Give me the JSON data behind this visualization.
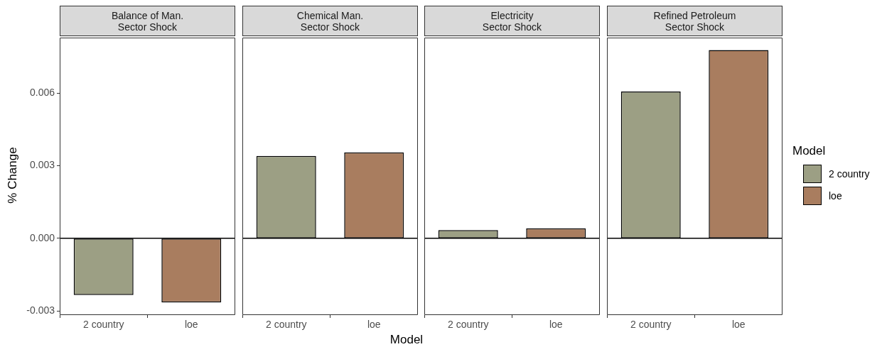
{
  "chart_data": [
    {
      "type": "bar",
      "title": "Balance of Man.\nSector Shock",
      "ylabel": "% Change",
      "legend_title": "Model",
      "legend": "right",
      "categories": [
        "2 country",
        "loe"
      ],
      "series": [
        {
          "name": "2 country",
          "color": "#9c9f84",
          "values": [
            -0.00234,
            null
          ]
        },
        {
          "name": "loe",
          "color": "#a97d5f",
          "values": [
            null,
            -0.00265
          ]
        }
      ],
      "ylim": [
        -0.00317,
        0.00829
      ],
      "yticks": [
        {
          "value": -0.003,
          "label": "-0.003"
        },
        {
          "value": 0,
          "label": "0.000"
        },
        {
          "value": 0.003,
          "label": "0.003"
        },
        {
          "value": 0.006,
          "label": "0.006"
        }
      ],
      "ref_lines": [
        {
          "axis": "y",
          "value": 0
        }
      ]
    },
    {
      "type": "bar",
      "title": "Chemical Man.\nSector Shock",
      "xlabel": "Model",
      "categories": [
        "2 country",
        "loe"
      ],
      "series": [
        {
          "color": "#9c9f84",
          "values": [
            0.0034,
            null
          ]
        },
        {
          "color": "#a97d5f",
          "values": [
            null,
            0.00355
          ]
        }
      ],
      "ylim": [
        -0.00317,
        0.00829
      ],
      "tick_labels": "x",
      "ref_lines": [
        {
          "axis": "y",
          "value": 0
        }
      ]
    },
    {
      "type": "bar",
      "title": "Electricity\nSector Shock",
      "categories": [
        "2 country",
        "loe"
      ],
      "series": [
        {
          "color": "#9c9f84",
          "values": [
            0.00034,
            null
          ]
        },
        {
          "color": "#a97d5f",
          "values": [
            null,
            0.00041
          ]
        }
      ],
      "ylim": [
        -0.00317,
        0.00829
      ],
      "tick_labels": "x",
      "ref_lines": [
        {
          "axis": "y",
          "value": 0
        }
      ]
    },
    {
      "type": "bar",
      "title": "Refined Petroleum\nSector Shock",
      "categories": [
        "2 country",
        "loe"
      ],
      "series": [
        {
          "color": "#9c9f84",
          "values": [
            0.00606,
            null
          ]
        },
        {
          "color": "#a97d5f",
          "values": [
            null,
            0.00778
          ]
        }
      ],
      "ylim": [
        -0.00317,
        0.00829
      ],
      "tick_labels": "x",
      "ref_lines": [
        {
          "axis": "y",
          "value": 0
        }
      ]
    }
  ]
}
